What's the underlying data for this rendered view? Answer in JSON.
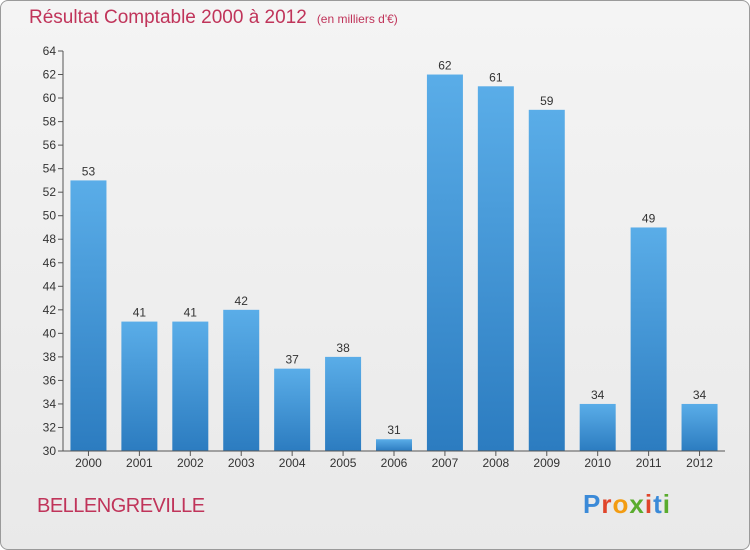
{
  "header": {
    "title": "Résultat Comptable 2000 à 2012",
    "unit": "(en milliers d'€)"
  },
  "footer": {
    "commune": "BELLENGREVILLE",
    "logo_letters": [
      "P",
      "r",
      "o",
      "x",
      "i",
      "t",
      "i"
    ],
    "logo_colors": [
      "#3b8ad8",
      "#e0452b",
      "#f39c12",
      "#5aac2e",
      "#e0452b",
      "#3b8ad8",
      "#5aac2e"
    ]
  },
  "chart_data": {
    "type": "bar",
    "categories": [
      "2000",
      "2001",
      "2002",
      "2003",
      "2004",
      "2005",
      "2006",
      "2007",
      "2008",
      "2009",
      "2010",
      "2011",
      "2012"
    ],
    "values": [
      53,
      41,
      41,
      42,
      37,
      38,
      31,
      62,
      61,
      59,
      34,
      49,
      34
    ],
    "ylim": [
      30,
      64
    ],
    "yticks": [
      30,
      32,
      34,
      36,
      38,
      40,
      42,
      44,
      46,
      48,
      50,
      52,
      54,
      56,
      58,
      60,
      62,
      64
    ],
    "grid": false,
    "colors": {
      "bar_top": "#5aade8",
      "bar_bottom": "#2c7cc0",
      "axis": "#555555",
      "text": "#333333"
    }
  }
}
